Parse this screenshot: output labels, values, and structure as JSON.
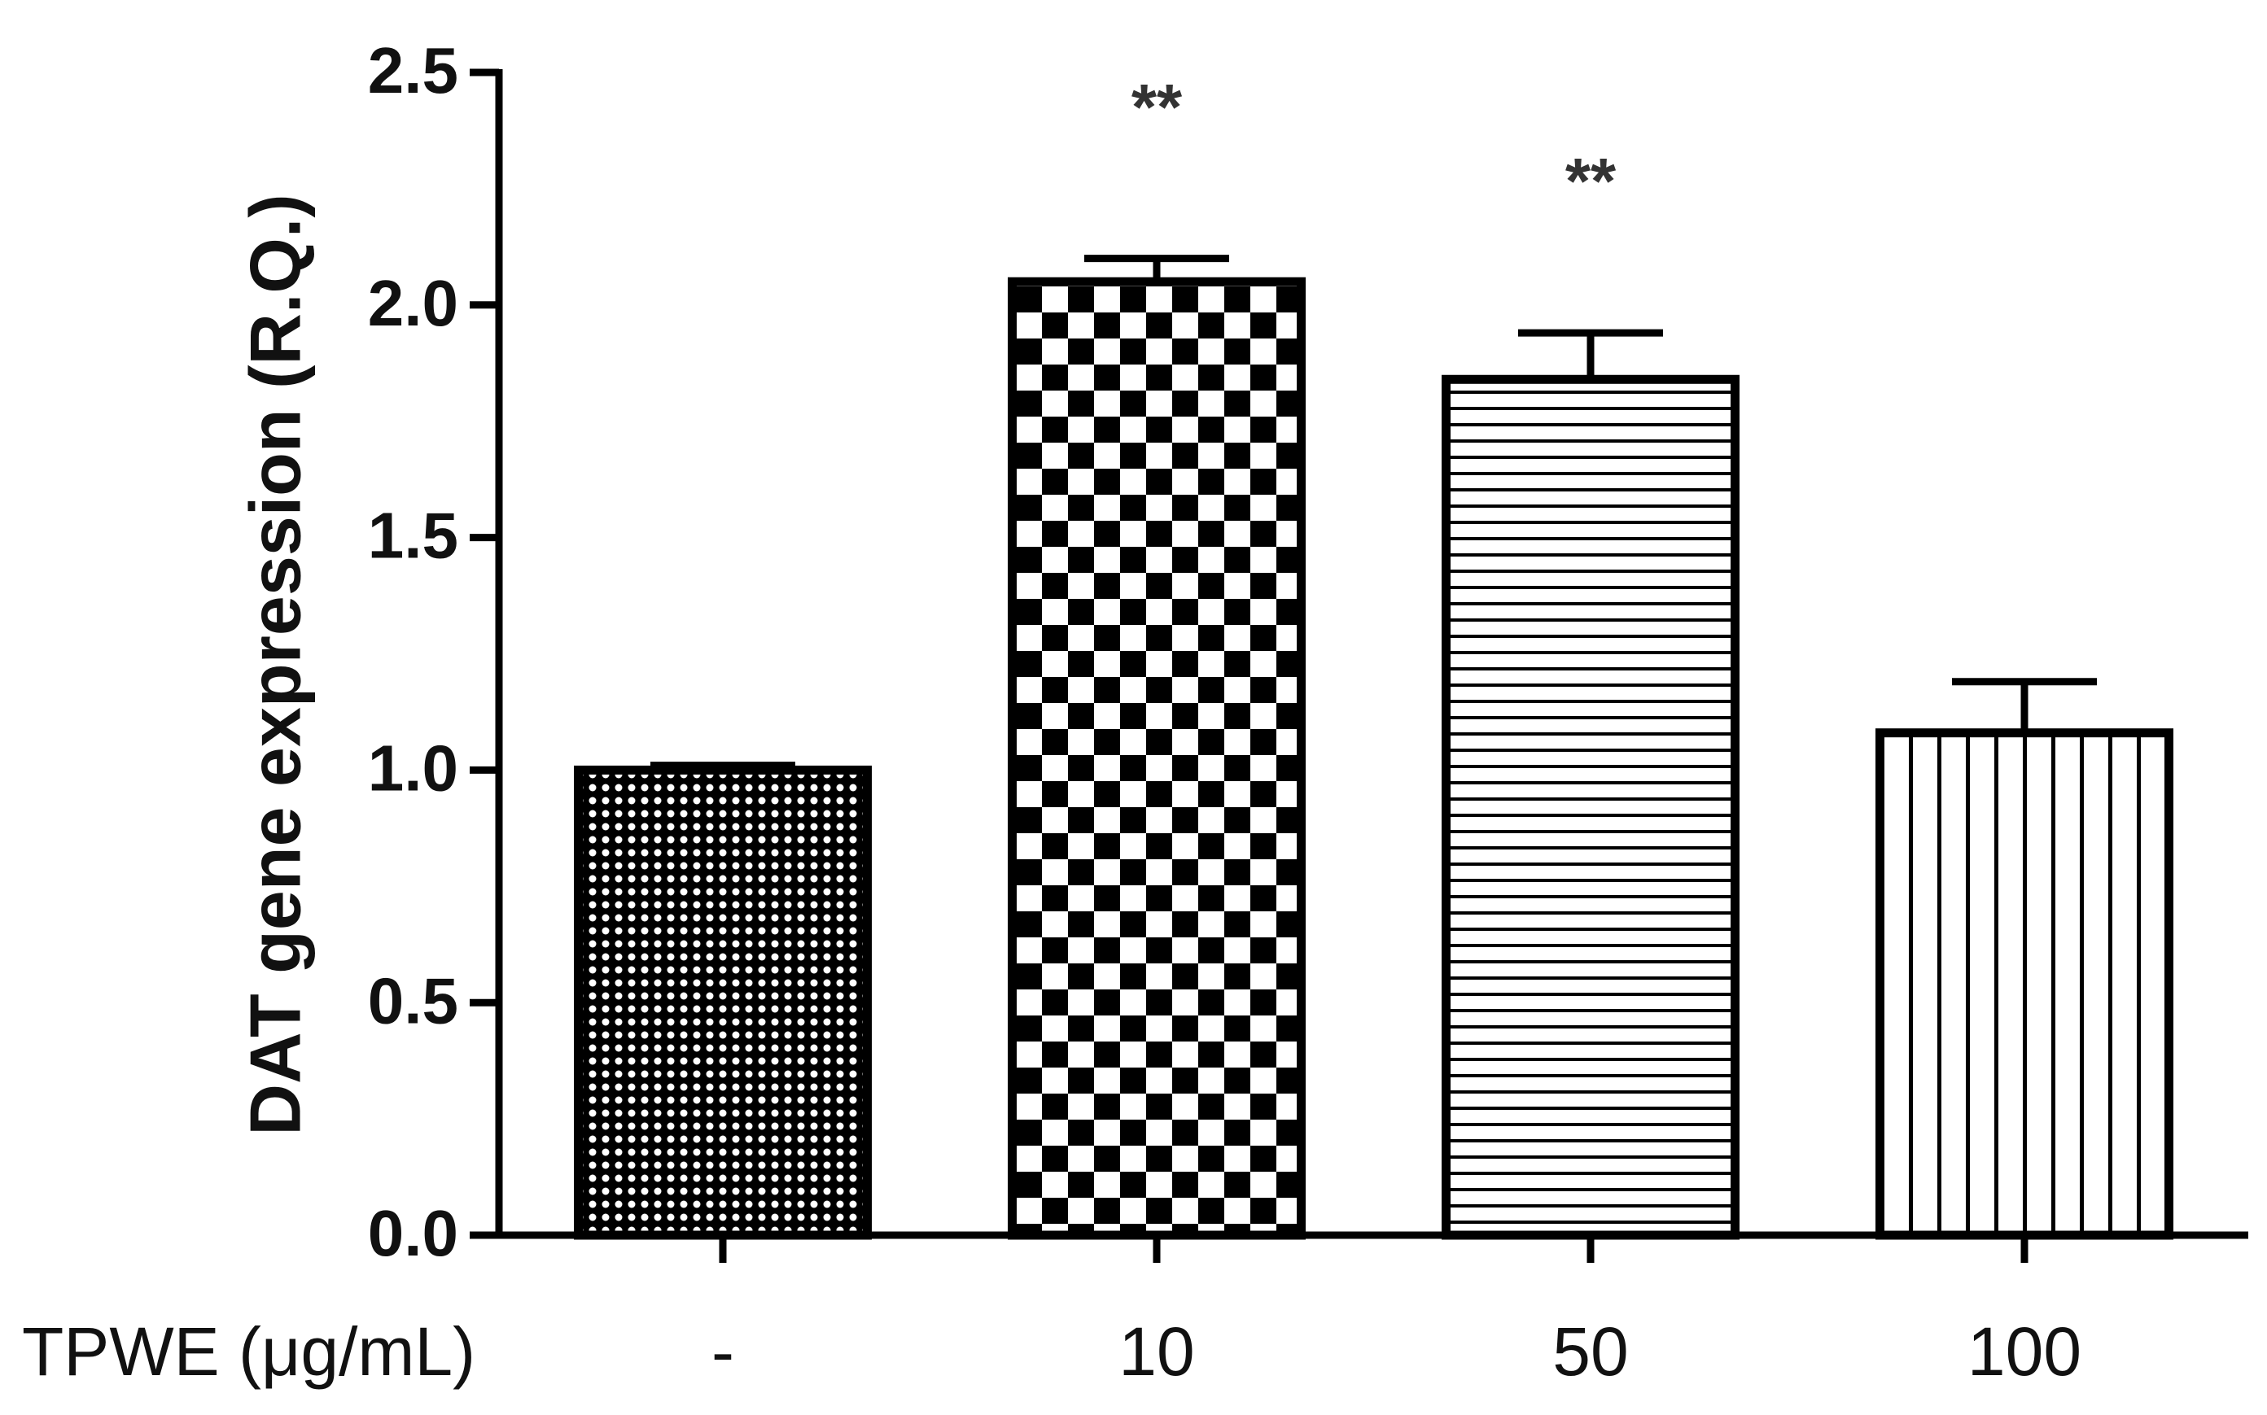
{
  "chart_data": {
    "type": "bar",
    "y_label": "DAT gene expression (R.Q.)",
    "x_label": "TPWE (μg/mL)",
    "categories": [
      "-",
      "10",
      "50",
      "100"
    ],
    "values": [
      1.0,
      2.05,
      1.84,
      1.08
    ],
    "errors": [
      0.01,
      0.05,
      0.1,
      0.11
    ],
    "color": "#000000",
    "annotations": [
      {
        "category": "10",
        "text": "**"
      },
      {
        "category": "50",
        "text": "**"
      }
    ],
    "ylim": [
      0,
      2.5
    ],
    "yticks": [
      {
        "value": 0,
        "label": "0.0"
      },
      0.5,
      {
        "value": 1,
        "label": "1.0"
      },
      1.5,
      {
        "value": 2,
        "label": "2.0"
      },
      2.5
    ],
    "grid": false
  }
}
